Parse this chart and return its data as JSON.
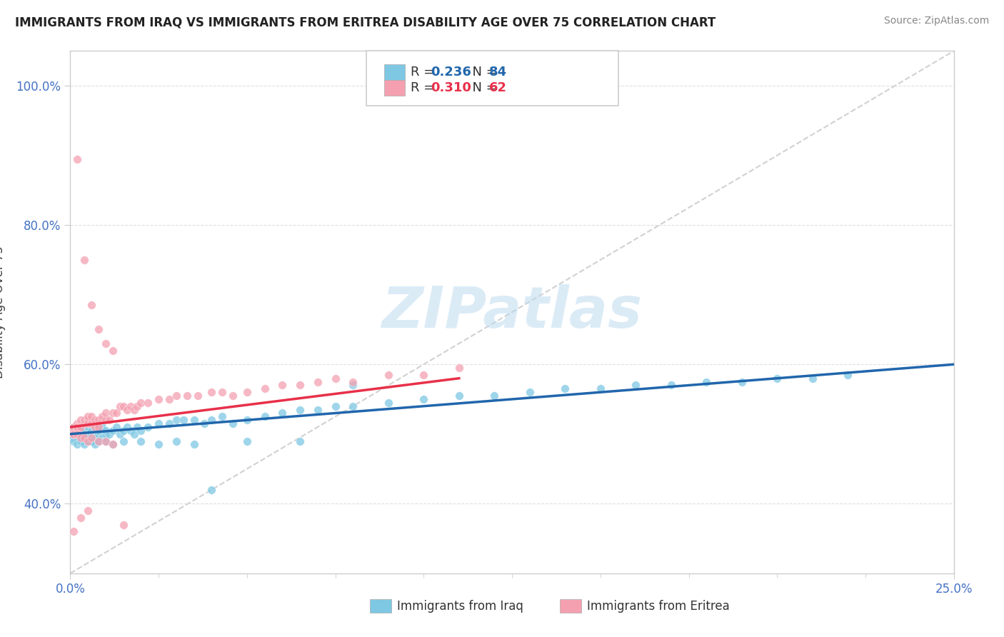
{
  "title": "IMMIGRANTS FROM IRAQ VS IMMIGRANTS FROM ERITREA DISABILITY AGE OVER 75 CORRELATION CHART",
  "source": "Source: ZipAtlas.com",
  "ylabel": "Disability Age Over 75",
  "legend_iraq": "Immigrants from Iraq",
  "legend_eritrea": "Immigrants from Eritrea",
  "R_iraq": 0.236,
  "N_iraq": 84,
  "R_eritrea": 0.31,
  "N_eritrea": 62,
  "xlim": [
    0.0,
    0.25
  ],
  "ylim": [
    0.3,
    1.05
  ],
  "iraq_color": "#7ec8e3",
  "eritrea_color": "#f4a0b0",
  "iraq_line_color": "#2166ac",
  "eritrea_line_color": "#e8304a",
  "diagonal_color": "#cccccc",
  "background_color": "#ffffff",
  "watermark": "ZIPatlas",
  "iraq_scatter_x": [
    0.0,
    0.001,
    0.001,
    0.002,
    0.002,
    0.002,
    0.003,
    0.003,
    0.003,
    0.004,
    0.004,
    0.005,
    0.005,
    0.005,
    0.006,
    0.006,
    0.007,
    0.007,
    0.008,
    0.008,
    0.009,
    0.009,
    0.01,
    0.01,
    0.011,
    0.012,
    0.013,
    0.014,
    0.015,
    0.016,
    0.017,
    0.018,
    0.019,
    0.02,
    0.022,
    0.025,
    0.028,
    0.03,
    0.032,
    0.035,
    0.038,
    0.04,
    0.043,
    0.046,
    0.05,
    0.055,
    0.06,
    0.065,
    0.07,
    0.075,
    0.08,
    0.09,
    0.1,
    0.11,
    0.12,
    0.13,
    0.14,
    0.15,
    0.16,
    0.17,
    0.18,
    0.19,
    0.2,
    0.21,
    0.22,
    0.001,
    0.002,
    0.003,
    0.004,
    0.005,
    0.006,
    0.007,
    0.008,
    0.01,
    0.012,
    0.015,
    0.02,
    0.025,
    0.03,
    0.035,
    0.04,
    0.05,
    0.065,
    0.08
  ],
  "iraq_scatter_y": [
    0.5,
    0.495,
    0.51,
    0.495,
    0.5,
    0.505,
    0.5,
    0.495,
    0.51,
    0.5,
    0.505,
    0.495,
    0.5,
    0.51,
    0.5,
    0.505,
    0.495,
    0.51,
    0.5,
    0.505,
    0.495,
    0.51,
    0.5,
    0.505,
    0.5,
    0.505,
    0.51,
    0.5,
    0.505,
    0.51,
    0.505,
    0.5,
    0.51,
    0.505,
    0.51,
    0.515,
    0.515,
    0.52,
    0.52,
    0.52,
    0.515,
    0.52,
    0.525,
    0.515,
    0.52,
    0.525,
    0.53,
    0.535,
    0.535,
    0.54,
    0.54,
    0.545,
    0.55,
    0.555,
    0.555,
    0.56,
    0.565,
    0.565,
    0.57,
    0.57,
    0.575,
    0.575,
    0.58,
    0.58,
    0.585,
    0.49,
    0.485,
    0.49,
    0.485,
    0.49,
    0.49,
    0.485,
    0.49,
    0.49,
    0.485,
    0.49,
    0.49,
    0.485,
    0.49,
    0.485,
    0.42,
    0.49,
    0.49,
    0.57
  ],
  "eritrea_scatter_x": [
    0.0,
    0.001,
    0.001,
    0.002,
    0.002,
    0.002,
    0.003,
    0.003,
    0.004,
    0.004,
    0.005,
    0.005,
    0.005,
    0.006,
    0.006,
    0.007,
    0.007,
    0.008,
    0.008,
    0.009,
    0.009,
    0.01,
    0.01,
    0.011,
    0.012,
    0.013,
    0.014,
    0.015,
    0.016,
    0.017,
    0.018,
    0.019,
    0.02,
    0.022,
    0.025,
    0.028,
    0.03,
    0.033,
    0.036,
    0.04,
    0.043,
    0.046,
    0.05,
    0.055,
    0.06,
    0.065,
    0.07,
    0.075,
    0.08,
    0.09,
    0.1,
    0.11,
    0.001,
    0.002,
    0.003,
    0.004,
    0.005,
    0.006,
    0.008,
    0.01,
    0.012,
    0.015
  ],
  "eritrea_scatter_y": [
    0.505,
    0.51,
    0.5,
    0.515,
    0.505,
    0.51,
    0.52,
    0.51,
    0.515,
    0.52,
    0.52,
    0.515,
    0.525,
    0.515,
    0.525,
    0.52,
    0.51,
    0.52,
    0.51,
    0.52,
    0.525,
    0.52,
    0.53,
    0.52,
    0.53,
    0.53,
    0.54,
    0.54,
    0.535,
    0.54,
    0.535,
    0.54,
    0.545,
    0.545,
    0.55,
    0.55,
    0.555,
    0.555,
    0.555,
    0.56,
    0.56,
    0.555,
    0.56,
    0.565,
    0.57,
    0.57,
    0.575,
    0.58,
    0.575,
    0.585,
    0.585,
    0.595,
    0.5,
    0.5,
    0.495,
    0.495,
    0.49,
    0.495,
    0.49,
    0.49,
    0.485,
    0.37
  ],
  "iraq_line_x": [
    0.0,
    0.25
  ],
  "iraq_line_y": [
    0.5,
    0.6
  ],
  "eritrea_line_x": [
    0.0,
    0.11
  ],
  "eritrea_line_y": [
    0.51,
    0.58
  ],
  "ytick_positions": [
    0.4,
    0.6,
    0.8,
    1.0
  ],
  "ytick_labels": [
    "40.0%",
    "60.0%",
    "80.0%",
    "100.0%"
  ],
  "xtick_positions": [
    0.0,
    0.25
  ],
  "xtick_labels": [
    "0.0%",
    "25.0%"
  ]
}
